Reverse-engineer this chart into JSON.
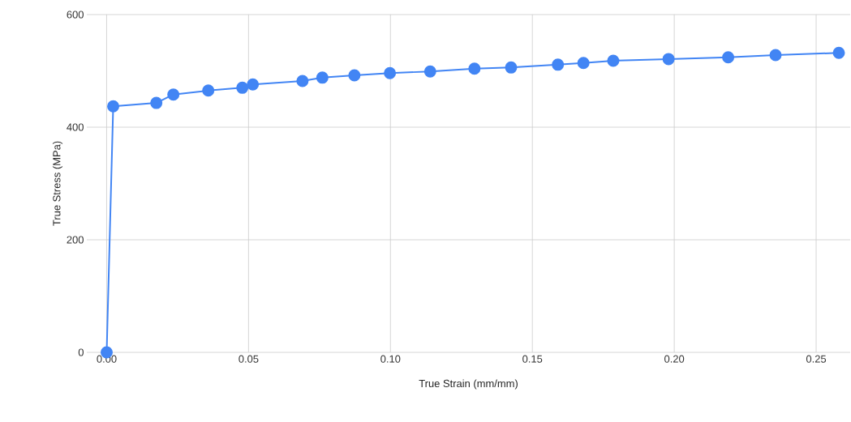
{
  "chart_data": {
    "type": "line",
    "xlabel": "True Strain (mm/mm)",
    "ylabel": "True Stress (MPa)",
    "x": [
      0,
      0.0023,
      0.0175,
      0.0235,
      0.0358,
      0.0478,
      0.0515,
      0.069,
      0.076,
      0.0873,
      0.0998,
      0.114,
      0.1296,
      0.1425,
      0.159,
      0.168,
      0.1785,
      0.198,
      0.219,
      0.2357,
      0.258
    ],
    "series": [
      {
        "color": "#4285f4",
        "values": [
          0,
          437,
          443,
          458,
          465,
          470,
          476,
          482,
          488,
          492,
          496,
          499,
          504,
          506,
          511,
          514,
          518,
          521,
          524,
          528,
          532
        ]
      }
    ],
    "xlim": [
      -0.007,
      0.262
    ],
    "ylim": [
      0,
      600
    ],
    "xticks": [
      {
        "value": 0,
        "label": "0.00"
      },
      {
        "value": 0.05,
        "label": "0.05"
      },
      {
        "value": 0.1,
        "label": "0.10"
      },
      {
        "value": 0.15,
        "label": "0.15"
      },
      {
        "value": 0.2,
        "label": "0.20"
      },
      {
        "value": 0.25,
        "label": "0.25"
      }
    ],
    "yticks": [
      0,
      200,
      400,
      600
    ],
    "grid": true,
    "marker": "circle",
    "line_style": "solid"
  }
}
